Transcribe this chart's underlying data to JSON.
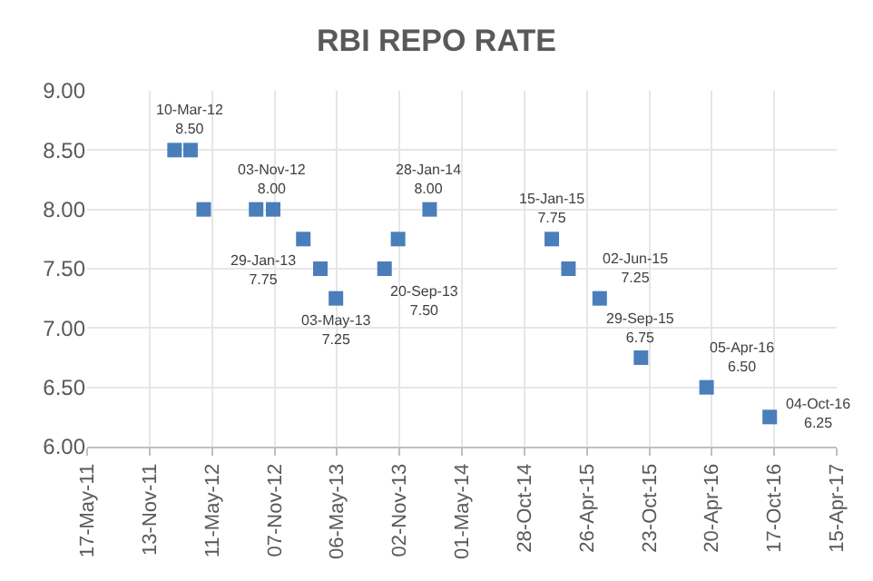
{
  "chart_data": {
    "type": "scatter",
    "title": "RBI REPO RATE",
    "x": [
      "2012-01-24",
      "2012-03-10",
      "2012-04-17",
      "2012-09-15",
      "2012-11-03",
      "2013-01-29",
      "2013-03-19",
      "2013-05-03",
      "2013-09-20",
      "2013-10-29",
      "2014-01-28",
      "2015-01-15",
      "2015-03-04",
      "2015-06-02",
      "2015-09-29",
      "2016-04-05",
      "2016-10-04"
    ],
    "values": [
      8.5,
      8.5,
      8.0,
      8.0,
      8.0,
      7.75,
      7.5,
      7.25,
      7.5,
      7.75,
      8.0,
      7.75,
      7.5,
      7.25,
      6.75,
      6.5,
      6.25
    ],
    "color": "#4a7ebb",
    "marker": "square",
    "xlim": [
      "2011-05-17",
      "2017-04-15"
    ],
    "xticks": [
      {
        "value": "2011-05-17",
        "label": "17-May-11"
      },
      {
        "value": "2011-11-13",
        "label": "13-Nov-11"
      },
      {
        "value": "2012-05-11",
        "label": "11-May-12"
      },
      {
        "value": "2012-11-07",
        "label": "07-Nov-12"
      },
      {
        "value": "2013-05-06",
        "label": "06-May-13"
      },
      {
        "value": "2013-11-02",
        "label": "02-Nov-13"
      },
      {
        "value": "2014-05-01",
        "label": "01-May-14"
      },
      {
        "value": "2014-10-28",
        "label": "28-Oct-14"
      },
      {
        "value": "2015-04-26",
        "label": "26-Apr-15"
      },
      {
        "value": "2015-10-23",
        "label": "23-Oct-15"
      },
      {
        "value": "2016-04-20",
        "label": "20-Apr-16"
      },
      {
        "value": "2016-10-17",
        "label": "17-Oct-16"
      },
      {
        "value": "2017-04-15",
        "label": "15-Apr-17"
      }
    ],
    "ylim": [
      6,
      9
    ],
    "yticks": [
      {
        "value": 6,
        "label": "6.00"
      },
      {
        "value": 6.5,
        "label": "6.50"
      },
      {
        "value": 7,
        "label": "7.00"
      },
      {
        "value": 7.5,
        "label": "7.50"
      },
      {
        "value": 8,
        "label": "8.00"
      },
      {
        "value": 8.5,
        "label": "8.50"
      },
      {
        "value": 9,
        "label": "9.00"
      }
    ],
    "grid": true,
    "annotations": [
      {
        "text": "10-Mar-12\n8.50",
        "x": "2012-03-10",
        "y": 8.5
      },
      {
        "text": "03-Nov-12\n8.00",
        "x": "2012-11-03",
        "y": 8.0
      },
      {
        "text": "29-Jan-13\n7.75",
        "x": "2013-01-29",
        "y": 7.75
      },
      {
        "text": "03-May-13\n7.25",
        "x": "2013-05-03",
        "y": 7.25
      },
      {
        "text": "20-Sep-13\n7.50",
        "x": "2013-09-20",
        "y": 7.5
      },
      {
        "text": "28-Jan-14\n8.00",
        "x": "2014-01-28",
        "y": 8.0
      },
      {
        "text": "15-Jan-15\n7.75",
        "x": "2015-01-15",
        "y": 7.75
      },
      {
        "text": "02-Jun-15\n7.25",
        "x": "2015-06-02",
        "y": 7.25
      },
      {
        "text": "29-Sep-15\n6.75",
        "x": "2015-09-29",
        "y": 6.75
      },
      {
        "text": "05-Apr-16\n6.50",
        "x": "2016-04-05",
        "y": 6.5
      },
      {
        "text": "04-Oct-16\n6.25",
        "x": "2016-10-04",
        "y": 6.25
      }
    ]
  }
}
